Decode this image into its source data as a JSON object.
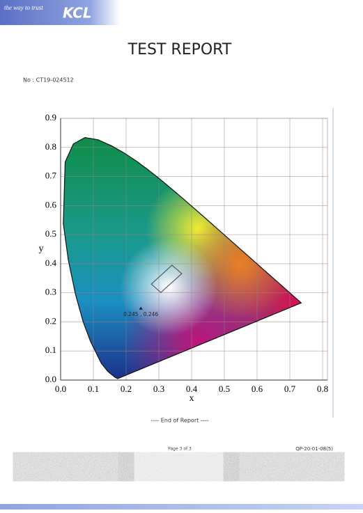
{
  "header": {
    "tagline": "the way to trust",
    "logo": "KCL"
  },
  "title": "TEST REPORT",
  "report_no": "No : CT19-024512",
  "chart_data": {
    "type": "scatter",
    "xlabel": "x",
    "ylabel": "y",
    "xlim": [
      0,
      0.8
    ],
    "ylim": [
      0,
      0.9
    ],
    "xticks": [
      {
        "value": 0,
        "label": "0.0"
      },
      0.1,
      0.2,
      0.3,
      0.4,
      0.5,
      0.6,
      0.7,
      0.8
    ],
    "yticks": [
      {
        "value": 0,
        "label": "0.0"
      },
      0.1,
      0.2,
      0.3,
      0.4,
      0.5,
      0.6,
      0.7,
      0.8,
      0.9
    ],
    "grid": true,
    "series": [
      {
        "x": [
          0.245
        ],
        "values": [
          0.246
        ],
        "value_labels": [
          "0.245 , 0.246"
        ],
        "color": "#111111"
      }
    ],
    "locus": {
      "x": [
        0.1741,
        0.1666,
        0.144,
        0.1241,
        0.0913,
        0.0687,
        0.0454,
        0.0235,
        0.0082,
        0.0139,
        0.0389,
        0.0743,
        0.1142,
        0.1547,
        0.1929,
        0.2296,
        0.2658,
        0.3016,
        0.3373,
        0.3731,
        0.4087,
        0.4441,
        0.4788,
        0.5125,
        0.5448,
        0.5752,
        0.6029,
        0.627,
        0.6482,
        0.6658,
        0.6915,
        0.7347
      ],
      "y": [
        0.005,
        0.0089,
        0.0297,
        0.0578,
        0.1327,
        0.2007,
        0.295,
        0.4127,
        0.5384,
        0.7502,
        0.812,
        0.8338,
        0.8262,
        0.8059,
        0.7816,
        0.7543,
        0.7243,
        0.6923,
        0.6589,
        0.6245,
        0.5896,
        0.5547,
        0.5202,
        0.4866,
        0.4544,
        0.4242,
        0.3965,
        0.3725,
        0.3514,
        0.334,
        0.3083,
        0.2653
      ]
    },
    "region": {
      "x": [
        0.277,
        0.34,
        0.37,
        0.306
      ],
      "y": [
        0.33,
        0.395,
        0.366,
        0.301
      ]
    }
  },
  "footer": {
    "end": "---- End of Report ----",
    "page": "Page 3 of 3",
    "form_no": "QP-20-01-08(5)"
  }
}
